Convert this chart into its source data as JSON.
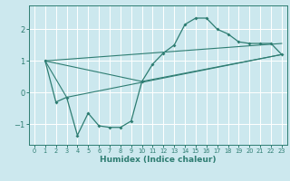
{
  "xlabel": "Humidex (Indice chaleur)",
  "bg_color": "#cce8ee",
  "line_color": "#2e7d72",
  "grid_color": "#ffffff",
  "xlim": [
    -0.5,
    23.5
  ],
  "ylim": [
    -1.65,
    2.75
  ],
  "xticks": [
    0,
    1,
    2,
    3,
    4,
    5,
    6,
    7,
    8,
    9,
    10,
    11,
    12,
    13,
    14,
    15,
    16,
    17,
    18,
    19,
    20,
    21,
    22,
    23
  ],
  "yticks": [
    -1,
    0,
    1,
    2
  ],
  "curve_x": [
    1,
    2,
    3,
    4,
    5,
    6,
    7,
    8,
    9,
    10,
    11,
    12,
    13,
    14,
    15,
    16,
    17,
    18,
    19,
    20,
    21,
    22,
    23
  ],
  "curve_y": [
    1.0,
    -0.3,
    -0.15,
    -1.35,
    -0.65,
    -1.05,
    -1.1,
    -1.1,
    -0.9,
    0.35,
    0.9,
    1.25,
    1.5,
    2.15,
    2.35,
    2.35,
    2.0,
    1.85,
    1.6,
    1.55,
    1.55,
    1.55,
    1.2
  ],
  "line1_x": [
    1,
    23
  ],
  "line1_y": [
    1.0,
    1.55
  ],
  "line2_x": [
    1,
    3,
    23
  ],
  "line2_y": [
    1.0,
    -0.15,
    1.2
  ],
  "line3_x": [
    1,
    10,
    23
  ],
  "line3_y": [
    1.0,
    0.35,
    1.2
  ]
}
